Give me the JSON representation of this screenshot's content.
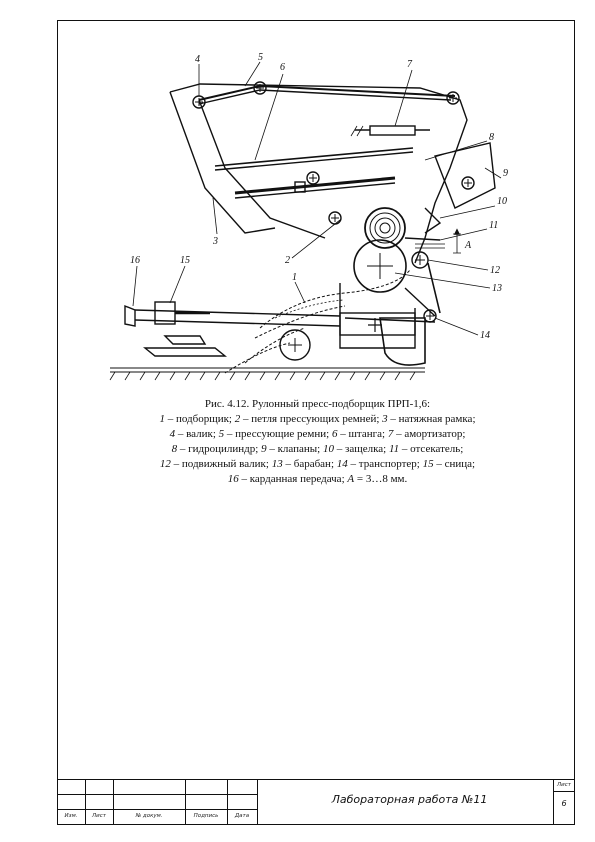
{
  "figure": {
    "callouts": [
      "1",
      "2",
      "3",
      "4",
      "5",
      "6",
      "7",
      "8",
      "9",
      "10",
      "11",
      "12",
      "13",
      "14",
      "15",
      "16"
    ],
    "dim_label": "А"
  },
  "caption": {
    "heading": "Рис. 4.12. Рулонный пресс-подборщик ПРП-1,6:",
    "lines": [
      [
        {
          "n": "1",
          "t": " – подборщик; "
        },
        {
          "n": "2",
          "t": " – петля прессующих ремней; "
        },
        {
          "n": "3",
          "t": " – натяжная рамка;"
        }
      ],
      [
        {
          "n": "4",
          "t": " – валик; "
        },
        {
          "n": "5",
          "t": " – прессующие ремни; "
        },
        {
          "n": "6",
          "t": " – штанга; "
        },
        {
          "n": "7",
          "t": " – амортизатор;"
        }
      ],
      [
        {
          "n": "8",
          "t": " – гидроцилиндр; "
        },
        {
          "n": "9",
          "t": " – клапаны; "
        },
        {
          "n": "10",
          "t": " – защелка; "
        },
        {
          "n": "11",
          "t": " – отсекатель;"
        }
      ],
      [
        {
          "n": "12",
          "t": " – подвижный валик; "
        },
        {
          "n": "13",
          "t": " – барабан; "
        },
        {
          "n": "14",
          "t": " – транспортер; "
        },
        {
          "n": "15",
          "t": " – сница;"
        }
      ],
      [
        {
          "n": "16",
          "t": " – карданная передача; "
        },
        {
          "n": "А",
          "t": " = 3…8 мм."
        }
      ]
    ]
  },
  "title_block": {
    "labels": {
      "izm": "Изм.",
      "list": "Лист",
      "doc": "№ докум.",
      "sign": "Подпись",
      "date": "Дата"
    },
    "title": "Лабораторная работа №11",
    "sheet_label": "Лист",
    "sheet_number": "6"
  }
}
